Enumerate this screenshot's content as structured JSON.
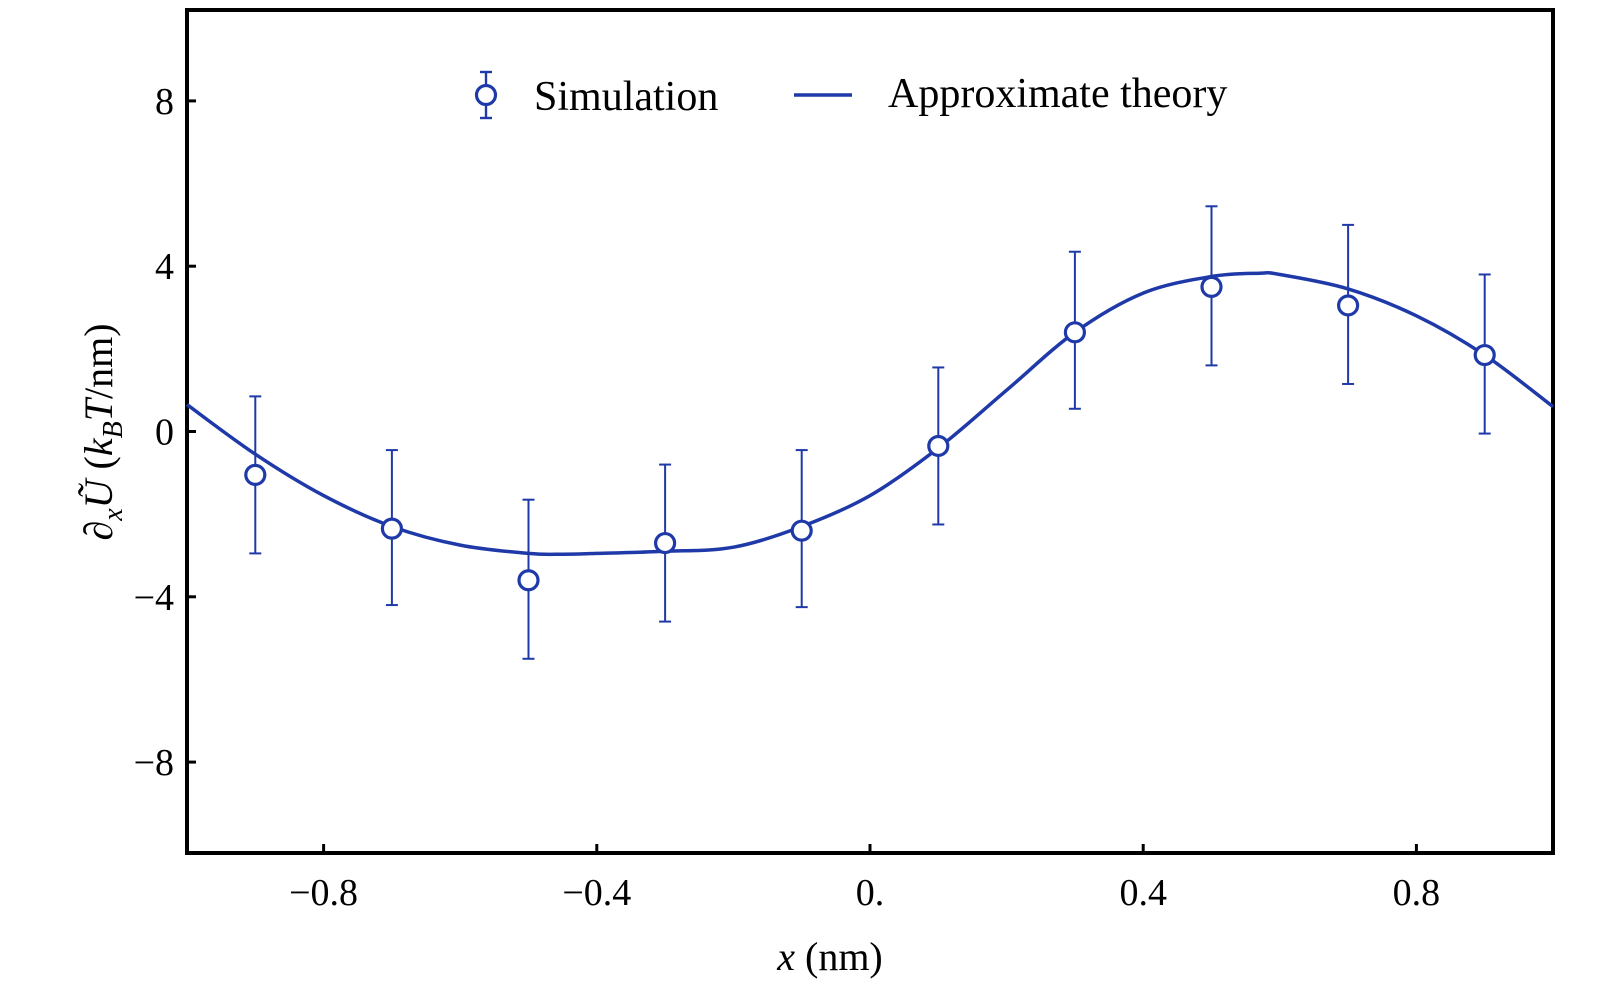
{
  "chart_data": {
    "type": "scatter",
    "xlabel_var": "x",
    "xlabel_unit": " (nm)",
    "ylabel_parts": {
      "partial": "∂",
      "sub_x": "x",
      "U": "Ũ",
      "open": " (",
      "k": "k",
      "sub_B": "B",
      "T": "T",
      "unit": "/nm)"
    },
    "xlim": [
      -1.0,
      1.0
    ],
    "ylim": [
      -10.2,
      10.2
    ],
    "x_ticks": [
      {
        "value": -0.8,
        "label": "−0.8"
      },
      {
        "value": -0.4,
        "label": "−0.4"
      },
      {
        "value": 0.0,
        "label": "0."
      },
      {
        "value": 0.4,
        "label": "0.4"
      },
      {
        "value": 0.8,
        "label": "0.8"
      }
    ],
    "y_ticks": [
      {
        "value": 8,
        "label": "8"
      },
      {
        "value": 4,
        "label": "4"
      },
      {
        "value": 0,
        "label": "0"
      },
      {
        "value": -4,
        "label": "−4"
      },
      {
        "value": -8,
        "label": "−8"
      }
    ],
    "legend": {
      "position": "top-center",
      "simulation_label": "Simulation",
      "theory_label": "Approximate theory"
    },
    "colors": {
      "series": "#1f3aa8",
      "axes": "#000000"
    },
    "series": [
      {
        "name": "Simulation",
        "kind": "points-with-errorbars",
        "x": [
          -0.9,
          -0.7,
          -0.5,
          -0.3,
          -0.1,
          0.1,
          0.3,
          0.5,
          0.7,
          0.9
        ],
        "y": [
          -1.05,
          -2.35,
          -3.6,
          -2.7,
          -2.4,
          -0.35,
          2.4,
          3.5,
          3.05,
          1.85
        ],
        "y_upper": [
          0.85,
          -0.45,
          -1.65,
          -0.8,
          -0.45,
          1.55,
          4.35,
          5.45,
          5.0,
          3.8
        ],
        "y_lower": [
          -2.95,
          -4.2,
          -5.5,
          -4.6,
          -4.25,
          -2.25,
          0.55,
          1.6,
          1.15,
          -0.05
        ]
      },
      {
        "name": "Approximate theory",
        "kind": "line",
        "x": [
          -1.0,
          -0.9,
          -0.8,
          -0.7,
          -0.6,
          -0.5,
          -0.45,
          -0.4,
          -0.3,
          -0.2,
          -0.1,
          0.0,
          0.1,
          0.2,
          0.3,
          0.4,
          0.5,
          0.57,
          0.6,
          0.7,
          0.8,
          0.9,
          1.0
        ],
        "y": [
          0.65,
          -0.55,
          -1.55,
          -2.3,
          -2.75,
          -2.95,
          -2.97,
          -2.95,
          -2.9,
          -2.8,
          -2.3,
          -1.55,
          -0.4,
          1.0,
          2.4,
          3.35,
          3.75,
          3.83,
          3.8,
          3.45,
          2.8,
          1.85,
          0.6
        ]
      }
    ]
  }
}
